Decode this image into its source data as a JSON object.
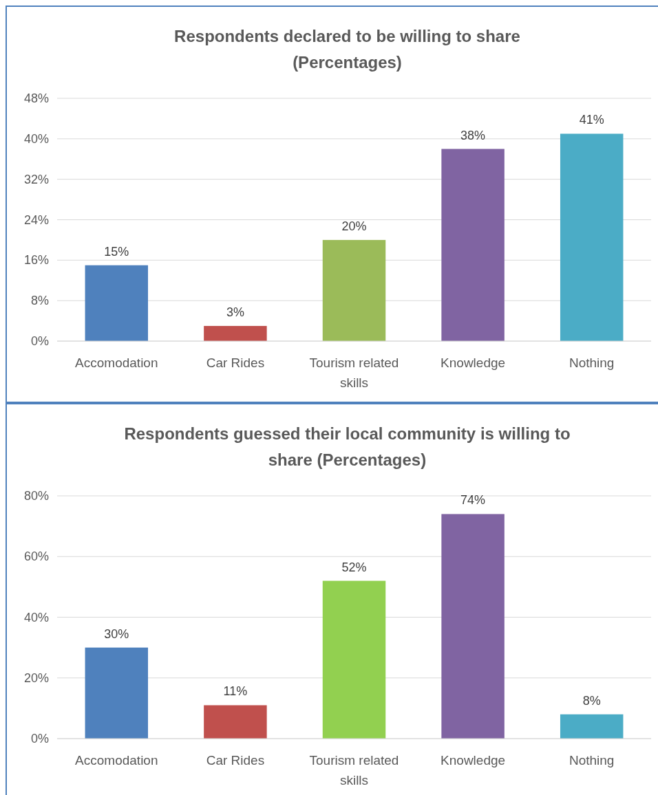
{
  "chart_data": [
    {
      "type": "bar",
      "title": "Respondents declared to be willing to share (Percentages)",
      "categories": [
        "Accomodation",
        "Car Rides",
        "Tourism related skills",
        "Knowledge",
        "Nothing"
      ],
      "values": [
        15,
        3,
        20,
        38,
        41
      ],
      "value_labels": [
        "15%",
        "3%",
        "20%",
        "38%",
        "41%"
      ],
      "colors": [
        "#4f81bd",
        "#c0504d",
        "#9bbb59",
        "#8064a2",
        "#4bacc6"
      ],
      "ylim": [
        0,
        48
      ],
      "yticks": [
        {
          "value": 0,
          "label": "0%"
        },
        {
          "value": 8,
          "label": "8%"
        },
        {
          "value": 16,
          "label": "16%"
        },
        {
          "value": 24,
          "label": "24%"
        },
        {
          "value": 32,
          "label": "32%"
        },
        {
          "value": 40,
          "label": "40%"
        },
        {
          "value": 48,
          "label": "48%"
        }
      ],
      "grid": "y"
    },
    {
      "type": "bar",
      "title": "Respondents guessed their local community is willing to share (Percentages)",
      "categories": [
        "Accomodation",
        "Car Rides",
        "Tourism related skills",
        "Knowledge",
        "Nothing"
      ],
      "values": [
        30,
        11,
        52,
        74,
        8
      ],
      "value_labels": [
        "30%",
        "11%",
        "52%",
        "74%",
        "8%"
      ],
      "colors": [
        "#4f81bd",
        "#c0504d",
        "#92d050",
        "#8064a2",
        "#4bacc6"
      ],
      "ylim": [
        0,
        80
      ],
      "yticks": [
        {
          "value": 0,
          "label": "0%"
        },
        {
          "value": 20,
          "label": "20%"
        },
        {
          "value": 40,
          "label": "40%"
        },
        {
          "value": 60,
          "label": "60%"
        },
        {
          "value": 80,
          "label": "80%"
        }
      ],
      "grid": "y"
    }
  ]
}
